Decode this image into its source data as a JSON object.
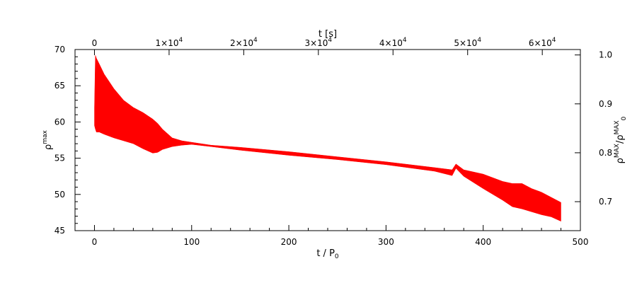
{
  "chart_data": {
    "type": "area",
    "xlabel": "t / P",
    "xlabel_sub": "0",
    "ylabel": "ρ",
    "ylabel_sup": "max",
    "top_xlabel": "t [s]",
    "right_ylabel": "ρ",
    "right_ylabel_sup": "MAX",
    "right_ylabel_mid": "/ρ",
    "right_ylabel_sup2": "MAX",
    "right_ylabel_sub": "0",
    "xlim": [
      -20,
      500
    ],
    "ylim": [
      45,
      70
    ],
    "x_ticks": [
      0,
      100,
      200,
      300,
      400,
      500
    ],
    "y_ticks": [
      45,
      50,
      55,
      60,
      65,
      70
    ],
    "top_axis": {
      "ticks": [
        {
          "mantissa": "0",
          "exp": ""
        },
        {
          "mantissa": "1×10",
          "exp": "4"
        },
        {
          "mantissa": "2×10",
          "exp": "4"
        },
        {
          "mantissa": "3×10",
          "exp": "4"
        },
        {
          "mantissa": "4×10",
          "exp": "4"
        },
        {
          "mantissa": "5×10",
          "exp": "4"
        },
        {
          "mantissa": "6×10",
          "exp": "4"
        }
      ],
      "tick_x_positions_data_units": [
        0,
        76.8,
        153.6,
        230.4,
        307.2,
        384.0,
        460.8
      ]
    },
    "right_axis": {
      "ticks": [
        "0.7",
        "0.8",
        "0.9",
        "1.0"
      ],
      "tick_values_data_units": [
        49.0,
        55.75,
        62.5,
        69.25
      ]
    },
    "series": [
      {
        "color": "#ff0000",
        "x": [
          0,
          1,
          2,
          5,
          10,
          20,
          30,
          40,
          50,
          60,
          65,
          70,
          80,
          90,
          100,
          120,
          150,
          200,
          250,
          300,
          350,
          368,
          372,
          380,
          400,
          420,
          430,
          440,
          450,
          460,
          470,
          480
        ],
        "upper": [
          62.0,
          69.2,
          68.8,
          68.0,
          66.6,
          64.6,
          63.0,
          62.0,
          61.3,
          60.4,
          59.8,
          59.0,
          57.8,
          57.4,
          57.2,
          56.8,
          56.5,
          55.9,
          55.2,
          54.5,
          53.7,
          53.4,
          54.2,
          53.4,
          52.8,
          51.8,
          51.5,
          51.5,
          50.8,
          50.3,
          49.6,
          48.9
        ],
        "lower": [
          59.5,
          59.0,
          58.6,
          58.6,
          58.3,
          57.8,
          57.4,
          57.0,
          56.3,
          55.7,
          55.8,
          56.2,
          56.6,
          56.8,
          56.9,
          56.6,
          56.1,
          55.4,
          54.8,
          54.1,
          53.2,
          52.6,
          53.6,
          52.5,
          50.8,
          49.2,
          48.3,
          48.0,
          47.6,
          47.2,
          46.9,
          46.3
        ]
      }
    ]
  }
}
